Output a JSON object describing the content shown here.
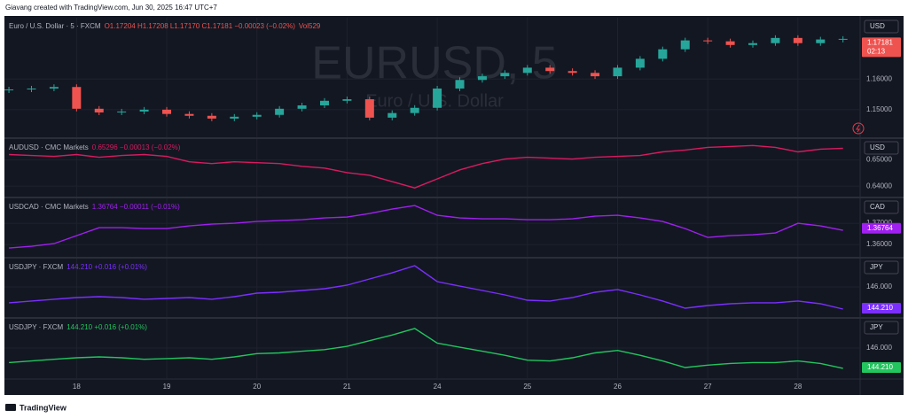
{
  "header": "Giavang created with TradingView.com, Jun 30, 2025 16:47 UTC+7",
  "footer": "TradingView",
  "time_axis": {
    "x": [
      0.25,
      0.5,
      0.75,
      1,
      1.25,
      1.5,
      1.75,
      2,
      2.25,
      2.5,
      2.75,
      3,
      3.25,
      3.5,
      3.75,
      4,
      4.25,
      4.5,
      4.75,
      5,
      5.25,
      5.5,
      5.75,
      6,
      6.25,
      6.5,
      6.75,
      7,
      7.25,
      7.5,
      7.75,
      8,
      8.25,
      8.5,
      8.75,
      9,
      9.25,
      9.5
    ],
    "xlim": [
      0.21,
      9.68
    ],
    "xticks": [
      {
        "value": 1,
        "label": "18"
      },
      {
        "value": 2,
        "label": "19"
      },
      {
        "value": 3,
        "label": "20"
      },
      {
        "value": 4,
        "label": "21"
      },
      {
        "value": 5,
        "label": "24"
      },
      {
        "value": 6,
        "label": "25"
      },
      {
        "value": 7,
        "label": "26"
      },
      {
        "value": 8,
        "label": "27"
      },
      {
        "value": 9,
        "label": "28"
      }
    ]
  },
  "chart_data": [
    {
      "type": "candlestick",
      "title": "Euro / U.S. Dollar · 5 · FXCM",
      "legend": "O1.17204 H1.17208 L1.17170 C1.17181 −0.00023 (−0.02%)",
      "volume": "Vol529",
      "watermark": "EURUSD, 5",
      "watermark_subtitle": "Euro / U.S. Dollar",
      "currency": "USD",
      "up_color": "#26a69a",
      "down_color": "#ef5350",
      "legend_color": "#ef5350",
      "last": {
        "value": 1.17181,
        "label": "1.17181"
      },
      "countdown": "02:13",
      "values": [
        1.1566,
        1.1569,
        1.1574,
        1.1503,
        1.1491,
        1.1494,
        1.15,
        1.1486,
        1.148,
        1.1471,
        1.1477,
        1.1483,
        1.1503,
        1.1514,
        1.1529,
        1.1534,
        1.1474,
        1.1489,
        1.1506,
        1.1569,
        1.1597,
        1.1609,
        1.162,
        1.1637,
        1.1626,
        1.162,
        1.1609,
        1.1637,
        1.1666,
        1.1697,
        1.1726,
        1.1723,
        1.1711,
        1.1717,
        1.1734,
        1.1717,
        1.1729,
        1.1731
      ],
      "ylim": [
        1.141,
        1.18
      ],
      "yticks": [
        {
          "value": 1.16,
          "label": "1.16000"
        },
        {
          "value": 1.15,
          "label": "1.15000"
        }
      ]
    },
    {
      "type": "line",
      "title": "AUDUSD · CMC Markets",
      "legend": "0.65296 −0.00013 (−0.02%)",
      "currency": "USD",
      "color": "#d81b60",
      "values": [
        0.65207,
        0.65172,
        0.65138,
        0.65207,
        0.65103,
        0.65172,
        0.65207,
        0.65138,
        0.64931,
        0.64862,
        0.64931,
        0.64897,
        0.64862,
        0.64759,
        0.6469,
        0.64517,
        0.64414,
        0.64172,
        0.63931,
        0.64276,
        0.64621,
        0.64862,
        0.65034,
        0.65103,
        0.65069,
        0.65034,
        0.65103,
        0.65138,
        0.65172,
        0.6531,
        0.65379,
        0.65483,
        0.65517,
        0.65552,
        0.65483,
        0.6531,
        0.65414,
        0.65448
      ],
      "ylim": [
        0.636,
        0.658
      ],
      "yticks": [
        {
          "value": 0.65,
          "label": "0.65000"
        },
        {
          "value": 0.64,
          "label": "0.64000"
        }
      ]
    },
    {
      "type": "line",
      "title": "USDCAD · CMC Markets",
      "legend": "1.36764 −0.00011 (−0.01%)",
      "currency": "CAD",
      "color": "#a020f0",
      "last": 1.36764,
      "values": [
        1.35833,
        1.35917,
        1.36042,
        1.36417,
        1.36792,
        1.36792,
        1.3675,
        1.3675,
        1.36875,
        1.36958,
        1.37,
        1.37083,
        1.37125,
        1.37167,
        1.3725,
        1.37292,
        1.37458,
        1.37667,
        1.37833,
        1.37375,
        1.3725,
        1.37208,
        1.37208,
        1.37167,
        1.37167,
        1.37208,
        1.37333,
        1.37375,
        1.3725,
        1.37083,
        1.3675,
        1.36333,
        1.36417,
        1.36458,
        1.36542,
        1.37,
        1.36875,
        1.36667
      ],
      "ylim": [
        1.3542,
        1.3817
      ],
      "yticks": [
        {
          "value": 1.37,
          "label": "1.37000"
        },
        {
          "value": 1.36,
          "label": "1.36000"
        }
      ]
    },
    {
      "type": "line",
      "title": "USDJPY · FXCM",
      "legend": "144.210 +0.016 (+0.01%)",
      "currency": "JPY",
      "color": "#7b2fff",
      "last": {
        "value": 144.21,
        "label": "144.210"
      },
      "values": [
        144.66,
        144.81,
        144.96,
        145.1,
        145.18,
        145.1,
        144.96,
        145.03,
        145.1,
        144.96,
        145.18,
        145.48,
        145.55,
        145.7,
        145.85,
        146.15,
        146.67,
        147.19,
        147.79,
        146.45,
        146.07,
        145.7,
        145.33,
        144.88,
        144.81,
        145.1,
        145.55,
        145.78,
        145.33,
        144.81,
        144.21,
        144.43,
        144.58,
        144.66,
        144.66,
        144.81,
        144.58,
        144.13
      ],
      "ylim": [
        143.46,
        148.39
      ],
      "yticks": [
        {
          "value": 146,
          "label": "146.000"
        }
      ]
    },
    {
      "type": "line",
      "title": "USDJPY · FXCM",
      "legend": "144.210 +0.016 (+0.01%)",
      "currency": "JPY",
      "color": "#22c55e",
      "last": {
        "value": 144.21,
        "label": "144.210"
      },
      "values": [
        144.66,
        144.81,
        144.96,
        145.1,
        145.18,
        145.1,
        144.96,
        145.03,
        145.1,
        144.96,
        145.18,
        145.48,
        145.55,
        145.7,
        145.85,
        146.15,
        146.67,
        147.19,
        147.79,
        146.45,
        146.07,
        145.7,
        145.33,
        144.88,
        144.81,
        145.1,
        145.55,
        145.78,
        145.33,
        144.81,
        144.21,
        144.43,
        144.58,
        144.66,
        144.66,
        144.81,
        144.58,
        144.13
      ],
      "ylim": [
        143.15,
        148.68
      ],
      "yticks": [
        {
          "value": 146,
          "label": "146.000"
        }
      ]
    }
  ]
}
